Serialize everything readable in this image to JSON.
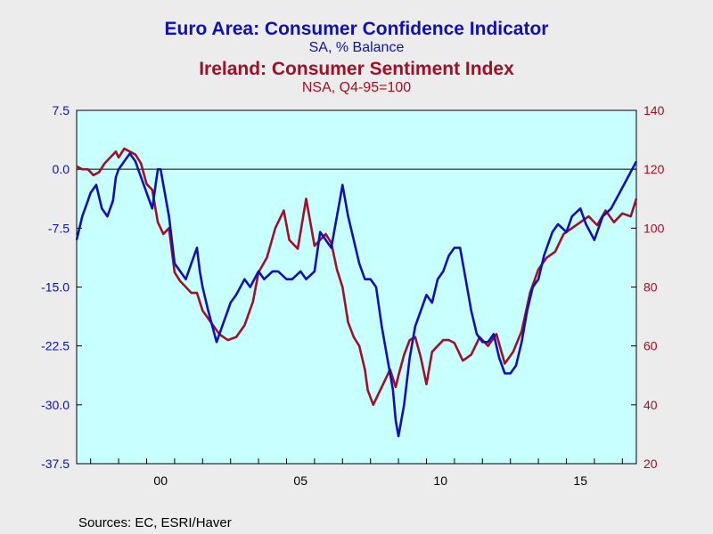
{
  "chart_data": {
    "type": "line",
    "titles": [
      {
        "title": "Euro Area: Consumer Confidence Indicator",
        "subtitle": "SA, % Balance",
        "color": "#1010b4"
      },
      {
        "title": "Ireland: Consumer Sentiment Index",
        "subtitle": "NSA, Q4-95=100",
        "color": "#a01028"
      }
    ],
    "x_tick_labels": [
      "00",
      "05",
      "10",
      "15"
    ],
    "x_tick_years": [
      2000,
      2005,
      2010,
      2015
    ],
    "xlim": [
      1997.5,
      2017.5
    ],
    "y_left": {
      "ylim": [
        -37.5,
        7.5
      ],
      "ticks": [
        "7.5",
        "0.0",
        "-7.5",
        "-15.0",
        "-22.5",
        "-30.0",
        "-37.5"
      ],
      "values": [
        7.5,
        0,
        -7.5,
        -15,
        -22.5,
        -30,
        -37.5
      ],
      "color": "#1010b4"
    },
    "y_right": {
      "ylim": [
        20,
        140
      ],
      "ticks": [
        "140",
        "120",
        "100",
        "80",
        "60",
        "40",
        "20"
      ],
      "values": [
        140,
        120,
        100,
        80,
        60,
        40,
        20
      ],
      "color": "#a01028"
    },
    "zero_line": 0,
    "series": [
      {
        "axis": "left",
        "color": "#1010b4",
        "x": [
          1997.5,
          1997.7,
          1997.9,
          1998.0,
          1998.2,
          1998.4,
          1998.6,
          1998.8,
          1998.9,
          1999.0,
          1999.2,
          1999.4,
          1999.6,
          1999.8,
          2000.0,
          2000.2,
          2000.4,
          2000.5,
          2000.6,
          2000.8,
          2001.0,
          2001.2,
          2001.4,
          2001.6,
          2001.8,
          2001.9,
          2002.0,
          2002.2,
          2002.5,
          2002.7,
          2002.9,
          2003.0,
          2003.2,
          2003.5,
          2003.7,
          2004.0,
          2004.2,
          2004.5,
          2004.7,
          2005.0,
          2005.2,
          2005.5,
          2005.7,
          2006.0,
          2006.2,
          2006.4,
          2006.6,
          2006.8,
          2006.9,
          2007.0,
          2007.2,
          2007.4,
          2007.6,
          2007.8,
          2008.0,
          2008.2,
          2008.4,
          2008.6,
          2008.8,
          2008.9,
          2009.0,
          2009.2,
          2009.4,
          2009.6,
          2009.8,
          2010.0,
          2010.2,
          2010.4,
          2010.6,
          2010.8,
          2011.0,
          2011.2,
          2011.4,
          2011.6,
          2011.8,
          2012.0,
          2012.2,
          2012.4,
          2012.6,
          2012.8,
          2013.0,
          2013.2,
          2013.4,
          2013.6,
          2013.8,
          2014.0,
          2014.2,
          2014.5,
          2014.7,
          2015.0,
          2015.2,
          2015.5,
          2015.7,
          2016.0,
          2016.3,
          2016.6,
          2016.9,
          2017.2,
          2017.5
        ],
        "values": [
          -9,
          -6,
          -4,
          -3,
          -2,
          -5,
          -6,
          -4,
          -1,
          0,
          1,
          2,
          1,
          -1,
          -3,
          -5,
          0,
          0,
          -2,
          -6,
          -12,
          -13,
          -14,
          -12,
          -10,
          -13,
          -15,
          -18,
          -22,
          -20,
          -18,
          -17,
          -16,
          -14,
          -15,
          -13,
          -14,
          -13,
          -13,
          -14,
          -14,
          -13,
          -14,
          -13,
          -8,
          -9,
          -10,
          -6,
          -4,
          -2,
          -6,
          -9,
          -12,
          -14,
          -14,
          -15,
          -20,
          -24,
          -28,
          -32,
          -34,
          -30,
          -24,
          -20,
          -18,
          -16,
          -17,
          -14,
          -13,
          -11,
          -10,
          -10,
          -14,
          -18,
          -21,
          -22,
          -22,
          -21,
          -24,
          -26,
          -26,
          -25,
          -22,
          -18,
          -15,
          -14,
          -11,
          -8,
          -7,
          -8,
          -6,
          -5,
          -7,
          -9,
          -6,
          -5,
          -3,
          -1,
          1
        ]
      },
      {
        "axis": "right",
        "color": "#a01028",
        "x": [
          1997.5,
          1997.7,
          1997.9,
          1998.1,
          1998.3,
          1998.5,
          1998.7,
          1998.9,
          1999.0,
          1999.2,
          1999.4,
          1999.6,
          1999.8,
          2000.0,
          2000.2,
          2000.4,
          2000.6,
          2000.8,
          2001.0,
          2001.2,
          2001.4,
          2001.6,
          2001.8,
          2002.0,
          2002.3,
          2002.6,
          2002.9,
          2003.2,
          2003.5,
          2003.8,
          2004.0,
          2004.3,
          2004.6,
          2004.9,
          2005.1,
          2005.4,
          2005.7,
          2006.0,
          2006.2,
          2006.4,
          2006.6,
          2006.8,
          2007.0,
          2007.2,
          2007.4,
          2007.6,
          2007.8,
          2007.9,
          2008.1,
          2008.3,
          2008.5,
          2008.7,
          2008.9,
          2009.0,
          2009.2,
          2009.4,
          2009.6,
          2009.8,
          2010.0,
          2010.2,
          2010.4,
          2010.6,
          2010.8,
          2011.0,
          2011.3,
          2011.6,
          2011.9,
          2012.2,
          2012.5,
          2012.8,
          2013.1,
          2013.4,
          2013.7,
          2014.0,
          2014.3,
          2014.6,
          2014.9,
          2015.2,
          2015.5,
          2015.8,
          2016.1,
          2016.4,
          2016.7,
          2017.0,
          2017.3,
          2017.5
        ],
        "values": [
          121,
          120,
          120,
          118,
          119,
          122,
          124,
          126,
          124,
          127,
          126,
          125,
          122,
          115,
          113,
          102,
          98,
          100,
          85,
          82,
          80,
          78,
          78,
          72,
          68,
          64,
          62,
          63,
          67,
          75,
          85,
          90,
          100,
          106,
          96,
          93,
          110,
          94,
          96,
          98,
          95,
          86,
          80,
          68,
          63,
          60,
          52,
          45,
          40,
          44,
          48,
          52,
          46,
          50,
          57,
          62,
          63,
          56,
          47,
          58,
          60,
          62,
          62,
          61,
          55,
          57,
          63,
          60,
          64,
          54,
          58,
          65,
          78,
          86,
          90,
          92,
          98,
          100,
          102,
          104,
          101,
          106,
          102,
          105,
          104,
          110
        ]
      }
    ],
    "source": "Sources:  EC, ESRI/Haver"
  }
}
